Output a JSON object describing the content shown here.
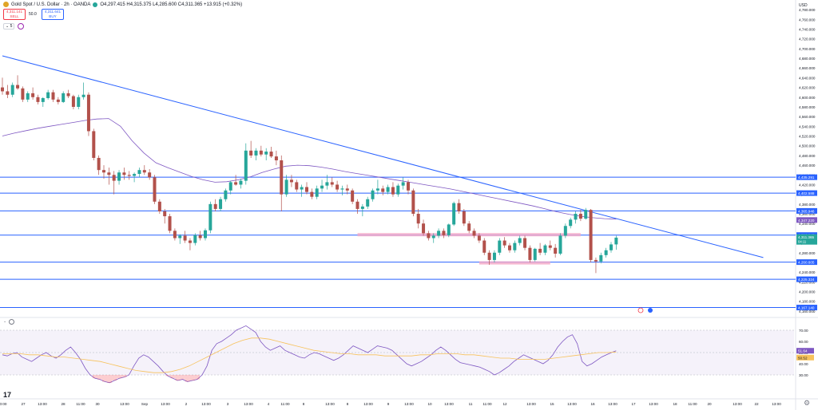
{
  "header": {
    "symbol_title": "Gold Spot / U.S. Dollar · 2h · OANDA",
    "ohlc": "O4,297.415 H4,315.375 L4,285.600 C4,311.365 +13.915 (+0.32%)",
    "sell_price": "4,311.141",
    "sell_label": "SELL",
    "buy_price": "4,311.641",
    "buy_label": "BUY",
    "spread": "50.0",
    "indicator_count": "5"
  },
  "axis": {
    "currency": "USD",
    "price_ticks": [
      "4,780.000",
      "4,760.000",
      "4,740.000",
      "4,720.000",
      "4,700.000",
      "4,680.000",
      "4,660.000",
      "4,640.000",
      "4,620.000",
      "4,600.000",
      "4,580.000",
      "4,560.000",
      "4,540.000",
      "4,520.000",
      "4,500.000",
      "4,480.000",
      "4,460.000",
      "4,440.000",
      "4,420.000",
      "4,400.000",
      "4,380.000",
      "4,360.000",
      "4,340.000",
      "4,320.000",
      "4,300.000",
      "4,280.000",
      "4,260.000",
      "4,240.000",
      "4,220.000",
      "4,200.000",
      "4,180.000",
      "4,160.000"
    ],
    "rsi_ticks": [
      "70.00",
      "60.00",
      "50.00",
      "40.00",
      "30.00"
    ],
    "time_labels": [
      {
        "label": "0:00",
        "x": 4
      },
      {
        "label": "27",
        "x": 29
      },
      {
        "label": "13:00",
        "x": 53
      },
      {
        "label": "28",
        "x": 79
      },
      {
        "label": "11:00",
        "x": 101
      },
      {
        "label": "30",
        "x": 122
      },
      {
        "label": "13:00",
        "x": 156
      },
      {
        "label": "Sep",
        "x": 181
      },
      {
        "label": "13:00",
        "x": 207
      },
      {
        "label": "2",
        "x": 233
      },
      {
        "label": "13:00",
        "x": 258
      },
      {
        "label": "3",
        "x": 285
      },
      {
        "label": "13:00",
        "x": 311
      },
      {
        "label": "4",
        "x": 336
      },
      {
        "label": "11:00",
        "x": 357
      },
      {
        "label": "8",
        "x": 380
      },
      {
        "label": "13:00",
        "x": 413
      },
      {
        "label": "8",
        "x": 435
      },
      {
        "label": "13:00",
        "x": 461
      },
      {
        "label": "9",
        "x": 486
      },
      {
        "label": "13:00",
        "x": 512
      },
      {
        "label": "10",
        "x": 538
      },
      {
        "label": "13:00",
        "x": 562
      },
      {
        "label": "11",
        "x": 589
      },
      {
        "label": "11:00",
        "x": 610
      },
      {
        "label": "12",
        "x": 632
      },
      {
        "label": "13:00",
        "x": 665
      },
      {
        "label": "15",
        "x": 691
      },
      {
        "label": "13:00",
        "x": 716
      },
      {
        "label": "16",
        "x": 742
      },
      {
        "label": "13:00",
        "x": 767
      },
      {
        "label": "17",
        "x": 793
      },
      {
        "label": "13:00",
        "x": 818
      },
      {
        "label": "18",
        "x": 845
      },
      {
        "label": "11:00",
        "x": 867
      },
      {
        "label": "20",
        "x": 888
      },
      {
        "label": "13:00",
        "x": 923
      },
      {
        "label": "22",
        "x": 947
      },
      {
        "label": "13:00",
        "x": 972
      }
    ]
  },
  "levels": [
    {
      "price": 4435.291,
      "label": "4,435.291",
      "color": "#2962ff"
    },
    {
      "price": 4402.588,
      "label": "4,402.588",
      "color": "#2962ff"
    },
    {
      "price": 4365.946,
      "label": "4,365.946",
      "color": "#2962ff"
    },
    {
      "price": 4316.245,
      "label": "4,316.245",
      "color": "#2962ff"
    },
    {
      "price": 4260.605,
      "label": "4,260.605",
      "color": "#2962ff"
    },
    {
      "price": 4225.324,
      "label": "4,225.324",
      "color": "#2962ff"
    },
    {
      "price": 4167.14,
      "label": "4,167.140",
      "color": "#2962ff"
    }
  ],
  "price_badges": {
    "ma_value": "4,347.220",
    "last_price": "4,311.365",
    "countdown": "04:11"
  },
  "rsi_badges": {
    "rsi_value": "51.64",
    "rsi_ma_value": "50.52"
  },
  "colors": {
    "up": "#26a69a",
    "down": "#b2514b",
    "level": "#2962ff",
    "trend": "#2962ff",
    "ma": "#7e57c2",
    "zone": "#f4a6c6",
    "rsi": "#7e57c2",
    "rsi_ma": "#f7c25c"
  },
  "chart_data": {
    "type": "candlestick",
    "y_unit": "USD",
    "ylim": [
      4150,
      4790
    ],
    "rsi_ylim": [
      20,
      80
    ],
    "candles": [
      [
        4620,
        4640,
        4605,
        4612
      ],
      [
        4612,
        4625,
        4598,
        4605
      ],
      [
        4605,
        4630,
        4600,
        4625
      ],
      [
        4625,
        4645,
        4615,
        4618
      ],
      [
        4618,
        4622,
        4590,
        4595
      ],
      [
        4595,
        4612,
        4590,
        4608
      ],
      [
        4608,
        4620,
        4595,
        4600
      ],
      [
        4600,
        4605,
        4585,
        4590
      ],
      [
        4590,
        4600,
        4580,
        4598
      ],
      [
        4598,
        4615,
        4595,
        4610
      ],
      [
        4610,
        4615,
        4590,
        4595
      ],
      [
        4595,
        4600,
        4585,
        4590
      ],
      [
        4590,
        4612,
        4588,
        4608
      ],
      [
        4608,
        4615,
        4598,
        4602
      ],
      [
        4602,
        4605,
        4575,
        4580
      ],
      [
        4580,
        4605,
        4575,
        4600
      ],
      [
        4600,
        4630,
        4595,
        4605
      ],
      [
        4605,
        4610,
        4520,
        4530
      ],
      [
        4530,
        4535,
        4470,
        4475
      ],
      [
        4475,
        4480,
        4440,
        4450
      ],
      [
        4450,
        4460,
        4432,
        4445
      ],
      [
        4445,
        4455,
        4420,
        4440
      ],
      [
        4440,
        4448,
        4400,
        4428
      ],
      [
        4428,
        4450,
        4420,
        4445
      ],
      [
        4445,
        4455,
        4430,
        4440
      ],
      [
        4440,
        4448,
        4430,
        4438
      ],
      [
        4438,
        4445,
        4425,
        4442
      ],
      [
        4442,
        4455,
        4435,
        4450
      ],
      [
        4450,
        4460,
        4440,
        4445
      ],
      [
        4445,
        4452,
        4430,
        4435
      ],
      [
        4435,
        4440,
        4380,
        4385
      ],
      [
        4385,
        4390,
        4360,
        4365
      ],
      [
        4365,
        4370,
        4340,
        4355
      ],
      [
        4355,
        4360,
        4320,
        4325
      ],
      [
        4325,
        4330,
        4305,
        4310
      ],
      [
        4310,
        4318,
        4298,
        4315
      ],
      [
        4315,
        4325,
        4300,
        4305
      ],
      [
        4305,
        4310,
        4285,
        4300
      ],
      [
        4300,
        4320,
        4295,
        4316
      ],
      [
        4316,
        4325,
        4305,
        4310
      ],
      [
        4310,
        4330,
        4305,
        4326
      ],
      [
        4326,
        4385,
        4320,
        4380
      ],
      [
        4380,
        4390,
        4365,
        4370
      ],
      [
        4370,
        4395,
        4365,
        4390
      ],
      [
        4390,
        4412,
        4385,
        4408
      ],
      [
        4408,
        4428,
        4400,
        4425
      ],
      [
        4425,
        4440,
        4418,
        4420
      ],
      [
        4420,
        4432,
        4412,
        4428
      ],
      [
        4428,
        4505,
        4420,
        4490
      ],
      [
        4490,
        4510,
        4475,
        4480
      ],
      [
        4480,
        4495,
        4470,
        4490
      ],
      [
        4490,
        4500,
        4478,
        4482
      ],
      [
        4482,
        4495,
        4470,
        4488
      ],
      [
        4488,
        4498,
        4475,
        4478
      ],
      [
        4478,
        4490,
        4460,
        4470
      ],
      [
        4470,
        4480,
        4365,
        4400
      ],
      [
        4400,
        4440,
        4395,
        4430
      ],
      [
        4430,
        4440,
        4415,
        4425
      ],
      [
        4425,
        4430,
        4405,
        4410
      ],
      [
        4410,
        4420,
        4395,
        4415
      ],
      [
        4415,
        4425,
        4400,
        4405
      ],
      [
        4405,
        4412,
        4390,
        4395
      ],
      [
        4395,
        4418,
        4390,
        4412
      ],
      [
        4412,
        4430,
        4405,
        4418
      ],
      [
        4418,
        4440,
        4410,
        4425
      ],
      [
        4425,
        4435,
        4415,
        4420
      ],
      [
        4420,
        4428,
        4405,
        4410
      ],
      [
        4410,
        4418,
        4398,
        4412
      ],
      [
        4412,
        4420,
        4400,
        4408
      ],
      [
        4408,
        4412,
        4380,
        4385
      ],
      [
        4385,
        4390,
        4360,
        4370
      ],
      [
        4370,
        4380,
        4355,
        4375
      ],
      [
        4375,
        4395,
        4370,
        4390
      ],
      [
        4390,
        4412,
        4385,
        4408
      ],
      [
        4408,
        4430,
        4400,
        4412
      ],
      [
        4412,
        4418,
        4398,
        4405
      ],
      [
        4405,
        4420,
        4400,
        4415
      ],
      [
        4415,
        4425,
        4395,
        4400
      ],
      [
        4400,
        4422,
        4395,
        4418
      ],
      [
        4418,
        4435,
        4410,
        4425
      ],
      [
        4425,
        4430,
        4400,
        4408
      ],
      [
        4408,
        4412,
        4355,
        4360
      ],
      [
        4360,
        4370,
        4330,
        4340
      ],
      [
        4340,
        4348,
        4315,
        4320
      ],
      [
        4320,
        4325,
        4305,
        4310
      ],
      [
        4310,
        4320,
        4300,
        4315
      ],
      [
        4315,
        4330,
        4310,
        4325
      ],
      [
        4325,
        4330,
        4310,
        4316
      ],
      [
        4316,
        4340,
        4312,
        4338
      ],
      [
        4338,
        4385,
        4335,
        4382
      ],
      [
        4382,
        4390,
        4360,
        4365
      ],
      [
        4365,
        4370,
        4335,
        4340
      ],
      [
        4340,
        4345,
        4320,
        4325
      ],
      [
        4325,
        4330,
        4310,
        4315
      ],
      [
        4315,
        4320,
        4300,
        4305
      ],
      [
        4305,
        4310,
        4275,
        4280
      ],
      [
        4280,
        4285,
        4255,
        4265
      ],
      [
        4265,
        4285,
        4260,
        4280
      ],
      [
        4280,
        4310,
        4275,
        4305
      ],
      [
        4305,
        4312,
        4290,
        4295
      ],
      [
        4295,
        4300,
        4280,
        4285
      ],
      [
        4285,
        4305,
        4280,
        4300
      ],
      [
        4300,
        4315,
        4295,
        4310
      ],
      [
        4310,
        4315,
        4285,
        4290
      ],
      [
        4290,
        4295,
        4260,
        4265
      ],
      [
        4265,
        4290,
        4262,
        4288
      ],
      [
        4288,
        4300,
        4275,
        4280
      ],
      [
        4280,
        4298,
        4275,
        4295
      ],
      [
        4295,
        4305,
        4285,
        4290
      ],
      [
        4290,
        4298,
        4270,
        4278
      ],
      [
        4278,
        4320,
        4275,
        4315
      ],
      [
        4315,
        4340,
        4310,
        4335
      ],
      [
        4335,
        4352,
        4330,
        4348
      ],
      [
        4348,
        4365,
        4340,
        4360
      ],
      [
        4360,
        4368,
        4345,
        4350
      ],
      [
        4350,
        4372,
        4348,
        4368
      ],
      [
        4368,
        4370,
        4260,
        4265
      ],
      [
        4265,
        4270,
        4238,
        4262
      ],
      [
        4262,
        4280,
        4258,
        4275
      ],
      [
        4275,
        4290,
        4270,
        4285
      ],
      [
        4285,
        4302,
        4280,
        4297
      ],
      [
        4297,
        4315,
        4286,
        4311
      ]
    ],
    "ma_line": [
      4520,
      4526,
      4531,
      4536,
      4540,
      4544,
      4548,
      4552,
      4555,
      4556,
      4540,
      4510,
      4485,
      4465,
      4455,
      4446,
      4437,
      4430,
      4425,
      4426,
      4430,
      4436,
      4445,
      4452,
      4458,
      4460,
      4459,
      4456,
      4452,
      4447,
      4443,
      4439,
      4435,
      4431,
      4427,
      4423,
      4419,
      4415,
      4411,
      4406,
      4401,
      4396,
      4391,
      4386,
      4381,
      4376,
      4370,
      4364,
      4359,
      4355,
      4352,
      4350,
      4349
    ],
    "trendline": {
      "start": {
        "index": 0,
        "price": 4685
      },
      "end": {
        "index": 150,
        "price": 4270
      }
    },
    "zones": [
      {
        "from_index": 70,
        "to_index": 114,
        "price": 4317
      },
      {
        "from_index": 94,
        "to_index": 108,
        "price": 4259
      }
    ],
    "rsi": [
      48,
      47,
      49,
      50,
      46,
      44,
      42,
      45,
      48,
      50,
      47,
      45,
      48,
      52,
      55,
      50,
      44,
      36,
      30,
      27,
      26,
      24,
      23,
      25,
      27,
      28,
      30,
      38,
      45,
      48,
      46,
      42,
      38,
      33,
      29,
      27,
      25,
      26,
      24,
      25,
      26,
      30,
      38,
      52,
      58,
      60,
      63,
      66,
      70,
      72,
      74,
      71,
      68,
      60,
      55,
      52,
      54,
      56,
      52,
      50,
      48,
      46,
      45,
      48,
      50,
      49,
      47,
      45,
      43,
      45,
      48,
      52,
      56,
      54,
      52,
      50,
      53,
      56,
      55,
      54,
      52,
      48,
      44,
      40,
      38,
      40,
      42,
      45,
      48,
      52,
      55,
      52,
      48,
      44,
      41,
      40,
      39,
      38,
      37,
      35,
      33,
      30,
      32,
      35,
      38,
      42,
      45,
      48,
      46,
      44,
      42,
      40,
      43,
      48,
      55,
      60,
      64,
      66,
      58,
      42,
      38,
      40,
      43,
      46,
      48,
      50,
      51.64
    ],
    "rsi_ma": [
      49,
      49,
      49,
      48,
      48,
      47,
      46,
      46,
      45,
      44,
      43,
      42,
      40,
      38,
      36,
      34,
      33,
      32,
      32,
      33,
      35,
      38,
      42,
      46,
      50,
      54,
      58,
      61,
      63,
      63,
      62,
      60,
      58,
      56,
      54,
      52,
      51,
      50,
      49,
      49,
      48,
      48,
      48,
      47,
      47,
      47,
      47,
      48,
      48,
      49,
      49,
      49,
      48,
      48,
      47,
      46,
      45,
      45,
      44,
      44,
      44,
      44,
      45,
      46,
      47,
      48,
      49,
      50,
      50,
      50.52
    ]
  }
}
